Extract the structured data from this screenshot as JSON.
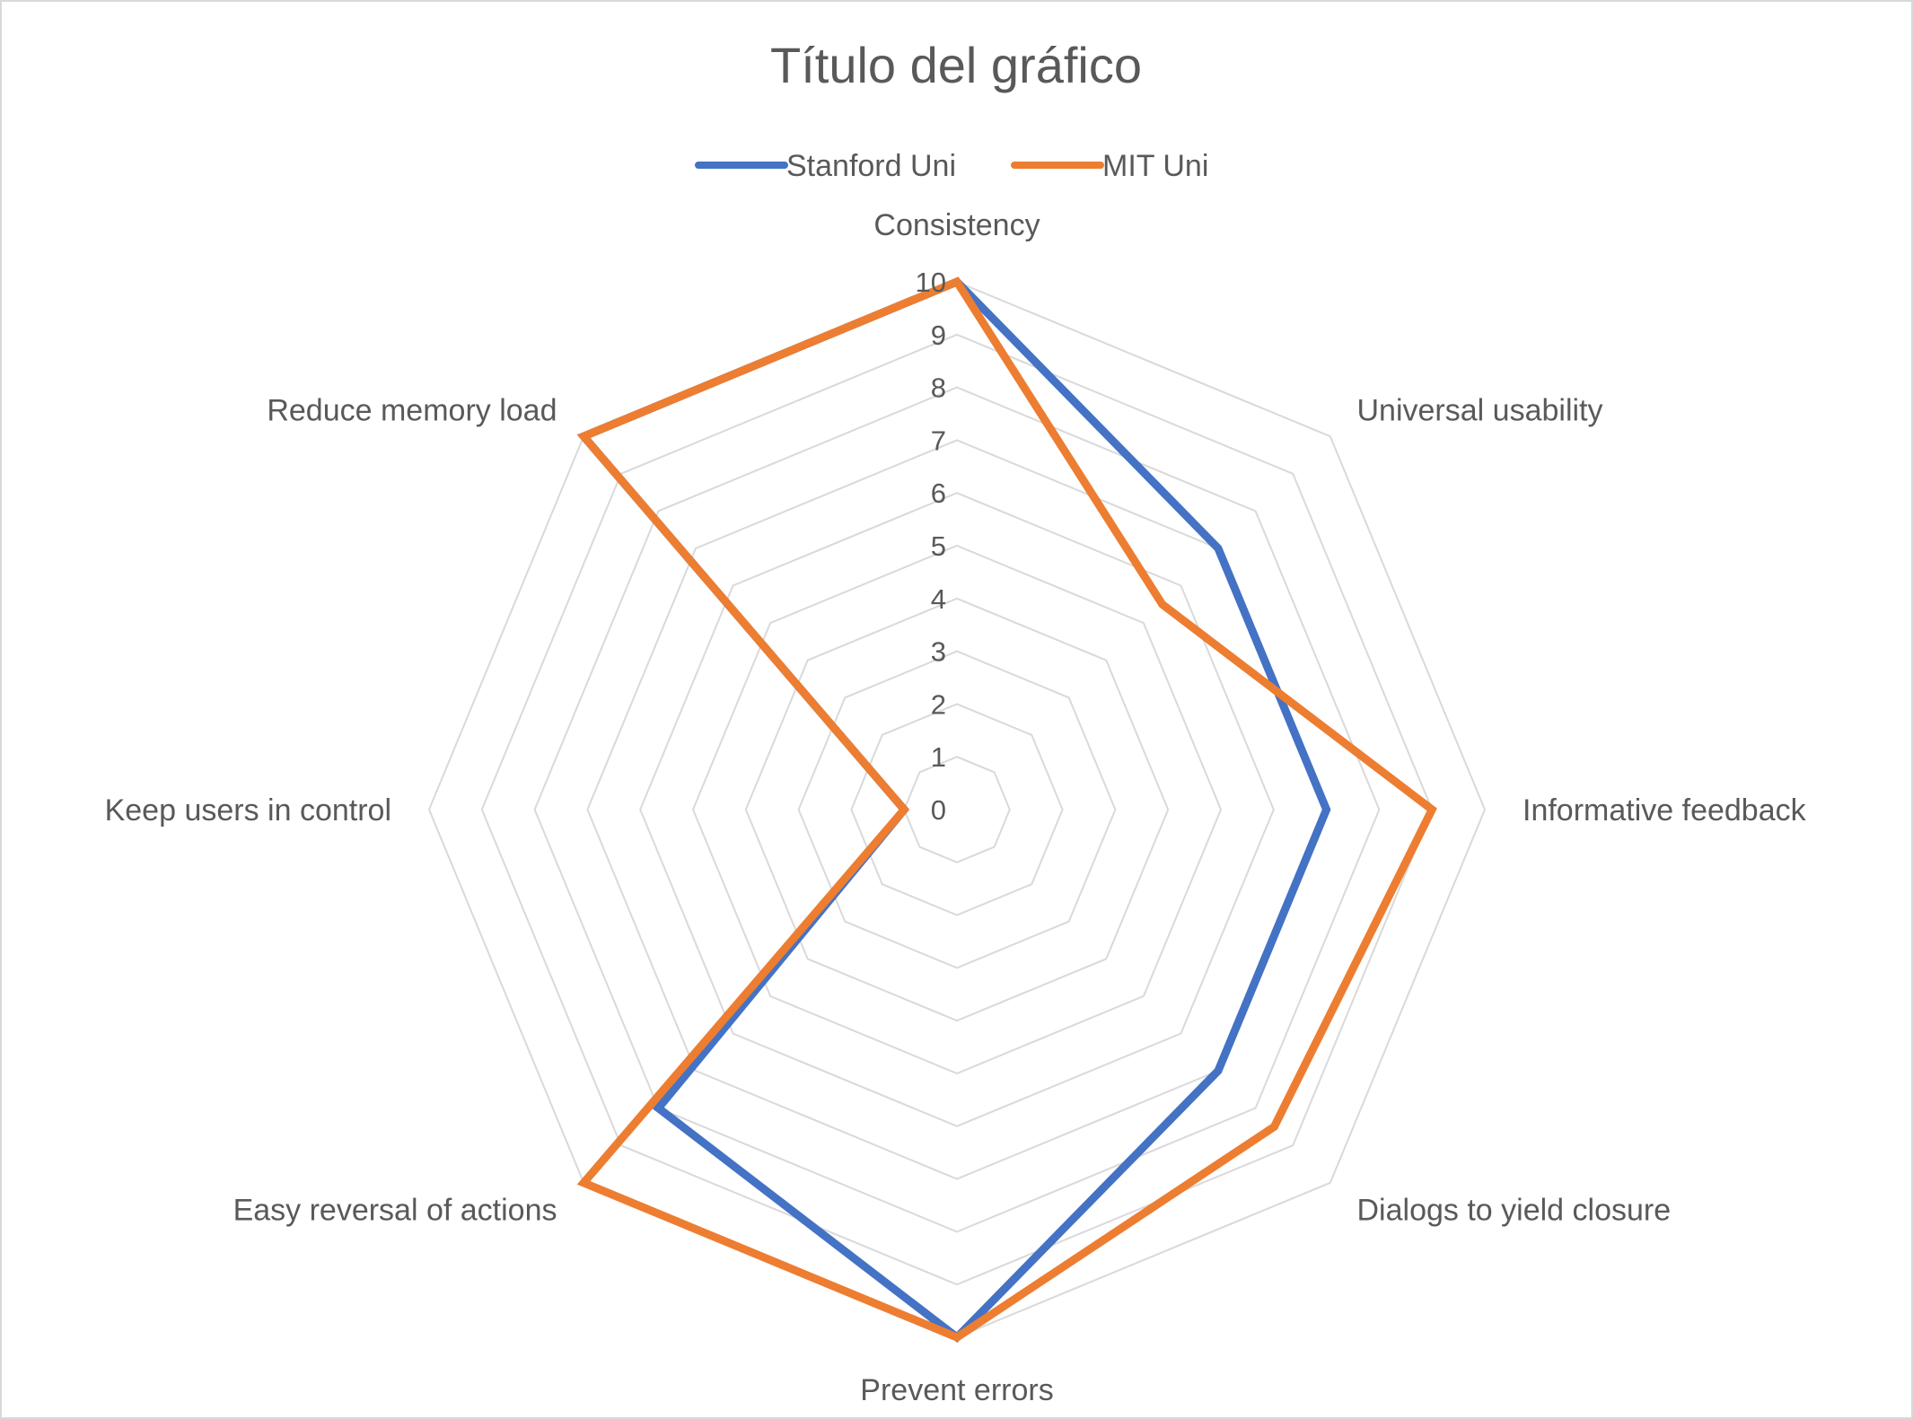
{
  "chart_data": {
    "type": "radar",
    "title": "Título del gráfico",
    "categories": [
      "Consistency",
      "Universal usability",
      "Informative feedback",
      "Dialogs to yield closure",
      "Prevent errors",
      "Easy reversal of actions",
      "Keep users in control",
      "Reduce memory load"
    ],
    "series": [
      {
        "name": "Stanford Uni",
        "color": "#4472c4",
        "values": [
          10,
          7,
          7,
          7,
          10,
          8,
          1,
          10
        ]
      },
      {
        "name": "MIT Uni",
        "color": "#ed7d31",
        "values": [
          10,
          5.5,
          9,
          8.5,
          10,
          10,
          1,
          10
        ]
      }
    ],
    "rlim": [
      0,
      10
    ],
    "ticks": [
      "0",
      "1",
      "2",
      "3",
      "4",
      "5",
      "6",
      "7",
      "8",
      "9",
      "10"
    ],
    "grid": true,
    "legend_position": "top",
    "grid_color": "#d9d9d9",
    "text_color": "#595959"
  }
}
